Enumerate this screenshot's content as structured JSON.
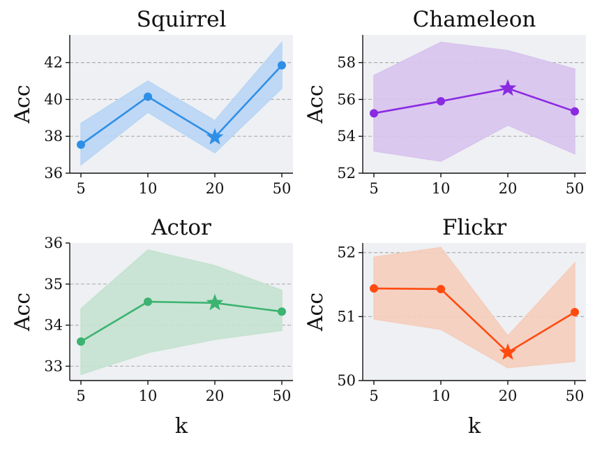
{
  "chart_data": [
    {
      "type": "line",
      "title": "Squirrel",
      "xlabel": "",
      "ylabel": "Acc",
      "categories": [
        "5",
        "10",
        "20",
        "50"
      ],
      "values": [
        37.55,
        40.15,
        37.95,
        41.85
      ],
      "band_upper": [
        38.7,
        41.0,
        38.85,
        43.1
      ],
      "band_lower": [
        36.45,
        39.3,
        37.1,
        40.6
      ],
      "best_index": 2,
      "yticks": [
        "36",
        "38",
        "40",
        "42"
      ],
      "ylim": [
        36,
        43.5
      ],
      "grid": "horizontal dashed",
      "color": "#2e8fe6",
      "fill_color": "#b9d5f5"
    },
    {
      "type": "line",
      "title": "Chameleon",
      "xlabel": "",
      "ylabel": "Acc",
      "categories": [
        "5",
        "10",
        "20",
        "50"
      ],
      "values": [
        55.25,
        55.9,
        56.6,
        55.35
      ],
      "band_upper": [
        57.3,
        59.1,
        58.65,
        57.65
      ],
      "band_lower": [
        53.2,
        52.65,
        54.6,
        53.05
      ],
      "best_index": 2,
      "yticks": [
        "52",
        "54",
        "56",
        "58"
      ],
      "ylim": [
        52,
        59.5
      ],
      "grid": "horizontal dashed",
      "color": "#8a2be2",
      "fill_color": "#d8c3ee"
    },
    {
      "type": "line",
      "title": "Actor",
      "xlabel": "k",
      "ylabel": "Acc",
      "categories": [
        "5",
        "10",
        "20",
        "50"
      ],
      "values": [
        33.6,
        34.57,
        34.54,
        34.33
      ],
      "band_upper": [
        34.4,
        35.83,
        35.45,
        34.85
      ],
      "band_lower": [
        32.8,
        33.33,
        33.65,
        33.87
      ],
      "best_index": 2,
      "yticks": [
        "33",
        "34",
        "35",
        "36"
      ],
      "ylim": [
        32.65,
        36
      ],
      "grid": "horizontal dashed",
      "color": "#3cb371",
      "fill_color": "#c4e2d0"
    },
    {
      "type": "line",
      "title": "Flickr",
      "xlabel": "k",
      "ylabel": "Acc",
      "categories": [
        "5",
        "10",
        "20",
        "50"
      ],
      "values": [
        51.44,
        51.43,
        50.44,
        51.07
      ],
      "band_upper": [
        51.93,
        52.08,
        50.7,
        51.84
      ],
      "band_lower": [
        50.96,
        50.8,
        50.2,
        50.3
      ],
      "best_index": 2,
      "yticks": [
        "50",
        "51",
        "52"
      ],
      "ylim": [
        50,
        52.15
      ],
      "grid": "horizontal dashed",
      "color": "#ff4a0f",
      "fill_color": "#f5cdbd"
    }
  ]
}
